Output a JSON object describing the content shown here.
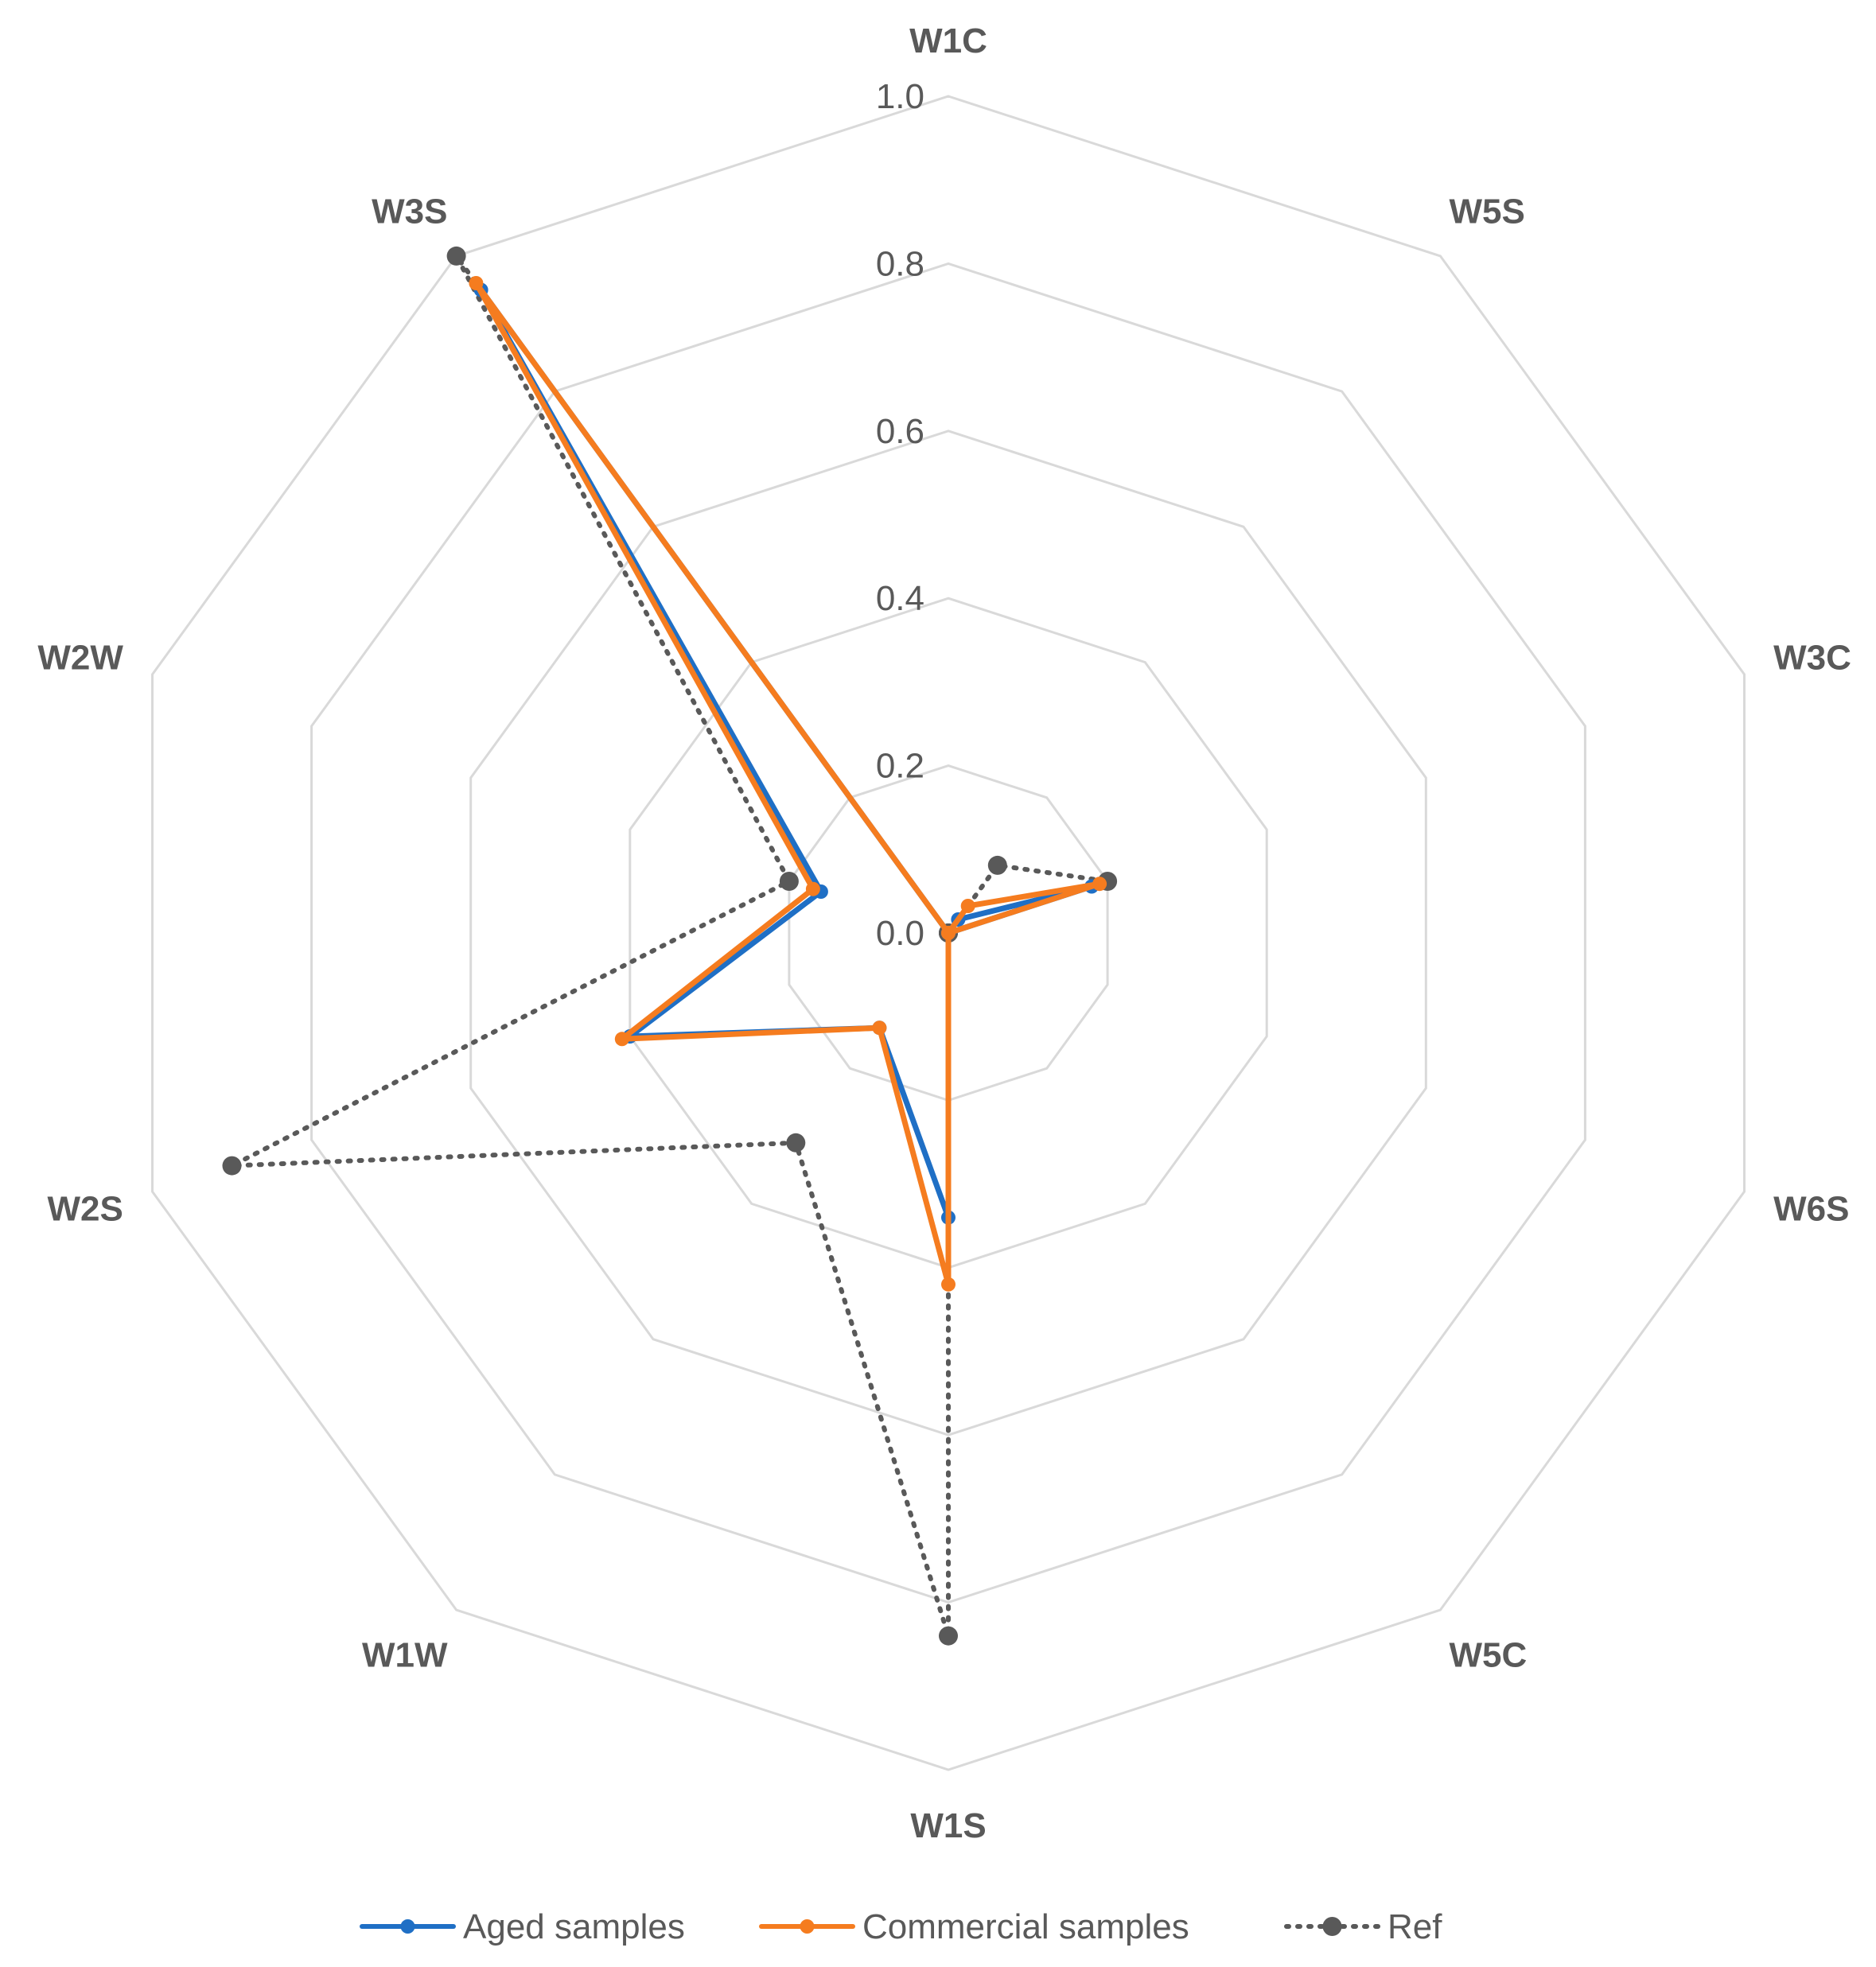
{
  "chart_data": {
    "type": "radar",
    "title": "",
    "axes": [
      "W1C",
      "W5S",
      "W3C",
      "W6S",
      "W5C",
      "W1S",
      "W1W",
      "W2S",
      "W2W",
      "W3S"
    ],
    "rlim": [
      0.0,
      1.0
    ],
    "ticks": [
      "0.0",
      "0.2",
      "0.4",
      "0.6",
      "0.8",
      "1.0"
    ],
    "tick_values": [
      0.0,
      0.2,
      0.4,
      0.6,
      0.8,
      1.0
    ],
    "grid": true,
    "legend_position": "bottom",
    "series": [
      {
        "name": "Aged samples",
        "color": "#1f6fc5",
        "dash": "solid",
        "values": [
          0.0,
          0.02,
          0.18,
          0.0,
          0.0,
          0.34,
          0.14,
          0.4,
          0.16,
          0.95
        ]
      },
      {
        "name": "Commercial samples",
        "color": "#f57c1f",
        "dash": "solid",
        "values": [
          0.0,
          0.04,
          0.19,
          0.0,
          0.0,
          0.42,
          0.14,
          0.41,
          0.17,
          0.96
        ]
      },
      {
        "name": "Ref",
        "color": "#595959",
        "dash": "dotted",
        "values": [
          0.0,
          0.1,
          0.2,
          0.0,
          0.0,
          0.84,
          0.31,
          0.9,
          0.2,
          1.0
        ]
      }
    ]
  }
}
